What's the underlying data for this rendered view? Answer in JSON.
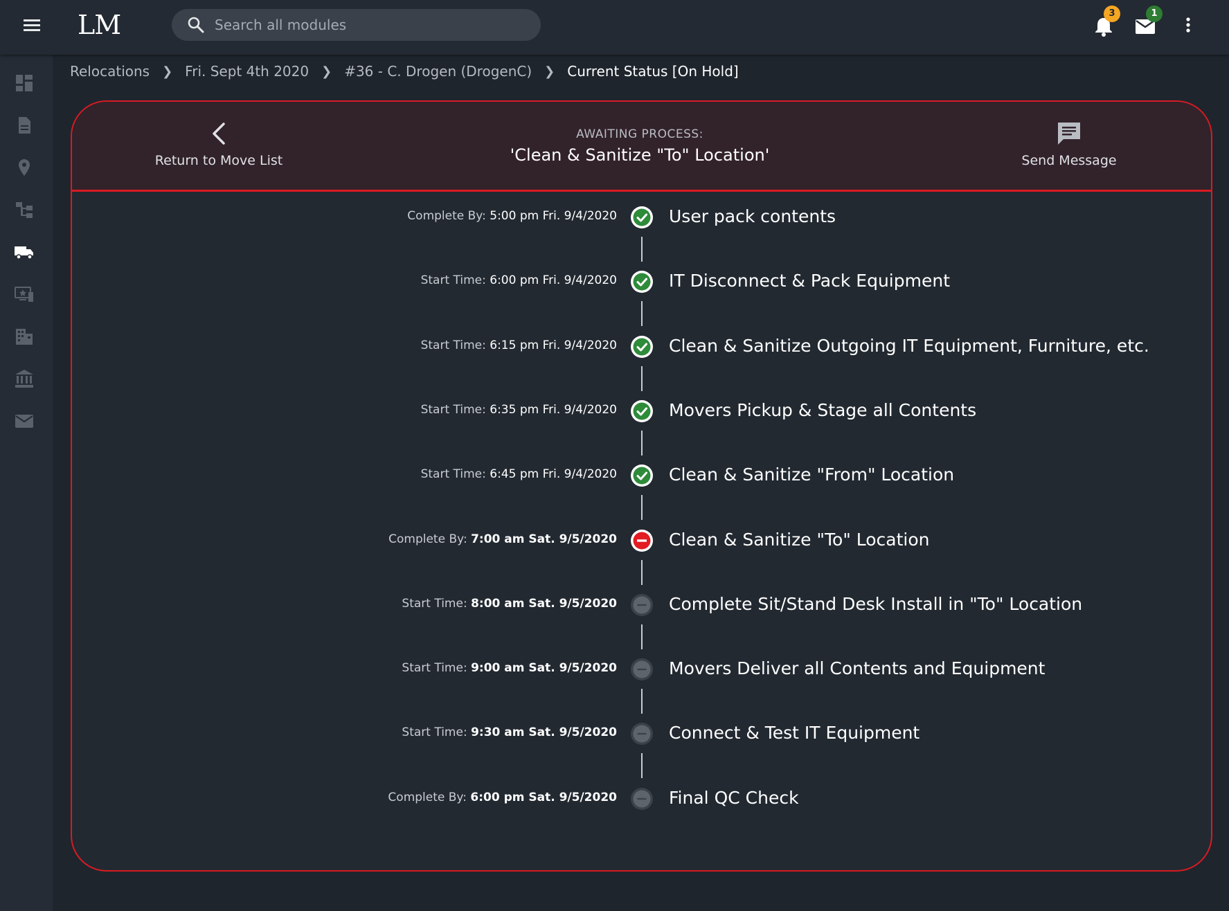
{
  "topbar": {
    "logo": "LM",
    "search_placeholder": "Search all modules",
    "notifications_count": "3",
    "messages_count": "1"
  },
  "sidebar": {
    "items": [
      "dashboard-icon",
      "document-icon",
      "location-pin-icon",
      "org-chart-icon",
      "truck-icon",
      "desktop-star-icon",
      "building-icon",
      "bank-icon",
      "mail-icon"
    ]
  },
  "breadcrumb": {
    "items": [
      "Relocations",
      "Fri. Sept 4th 2020",
      "#36 - C. Drogen (DrogenC)",
      "Current Status [On Hold]"
    ]
  },
  "header": {
    "back_label": "Return to Move List",
    "awaiting_title": "AWAITING PROCESS:",
    "awaiting_process": "'Clean & Sanitize \"To\" Location'",
    "send_label": "Send Message"
  },
  "steps": [
    {
      "time_label": "Complete By:",
      "time_value": "5:00 pm Fri. 9/4/2020",
      "bold": false,
      "label": "User pack contents",
      "status": "done"
    },
    {
      "time_label": "Start Time:",
      "time_value": "6:00 pm Fri. 9/4/2020",
      "bold": false,
      "label": "IT Disconnect & Pack Equipment",
      "status": "done"
    },
    {
      "time_label": "Start Time:",
      "time_value": "6:15 pm Fri. 9/4/2020",
      "bold": false,
      "label": "Clean & Sanitize Outgoing IT Equipment, Furniture, etc.",
      "status": "done"
    },
    {
      "time_label": "Start Time:",
      "time_value": "6:35 pm Fri. 9/4/2020",
      "bold": false,
      "label": "Movers Pickup & Stage all Contents",
      "status": "done"
    },
    {
      "time_label": "Start Time:",
      "time_value": "6:45 pm Fri. 9/4/2020",
      "bold": false,
      "label": "Clean & Sanitize \"From\" Location",
      "status": "done"
    },
    {
      "time_label": "Complete By:",
      "time_value": "7:00 am Sat. 9/5/2020",
      "bold": true,
      "label": "Clean & Sanitize \"To\" Location",
      "status": "blocked"
    },
    {
      "time_label": "Start Time:",
      "time_value": "8:00 am Sat. 9/5/2020",
      "bold": true,
      "label": "Complete Sit/Stand Desk Install in \"To\" Location",
      "status": "pending"
    },
    {
      "time_label": "Start Time:",
      "time_value": "9:00 am Sat. 9/5/2020",
      "bold": true,
      "label": "Movers Deliver all Contents and Equipment",
      "status": "pending"
    },
    {
      "time_label": "Start Time:",
      "time_value": "9:30 am Sat. 9/5/2020",
      "bold": true,
      "label": "Connect & Test IT Equipment",
      "status": "pending"
    },
    {
      "time_label": "Complete By:",
      "time_value": "6:00 pm Sat. 9/5/2020",
      "bold": true,
      "label": "Final QC Check",
      "status": "pending"
    }
  ],
  "colors": {
    "done": "#2e8b3a",
    "blocked": "#e31b23",
    "pending": "#5d646c",
    "accent": "#d81b23"
  }
}
